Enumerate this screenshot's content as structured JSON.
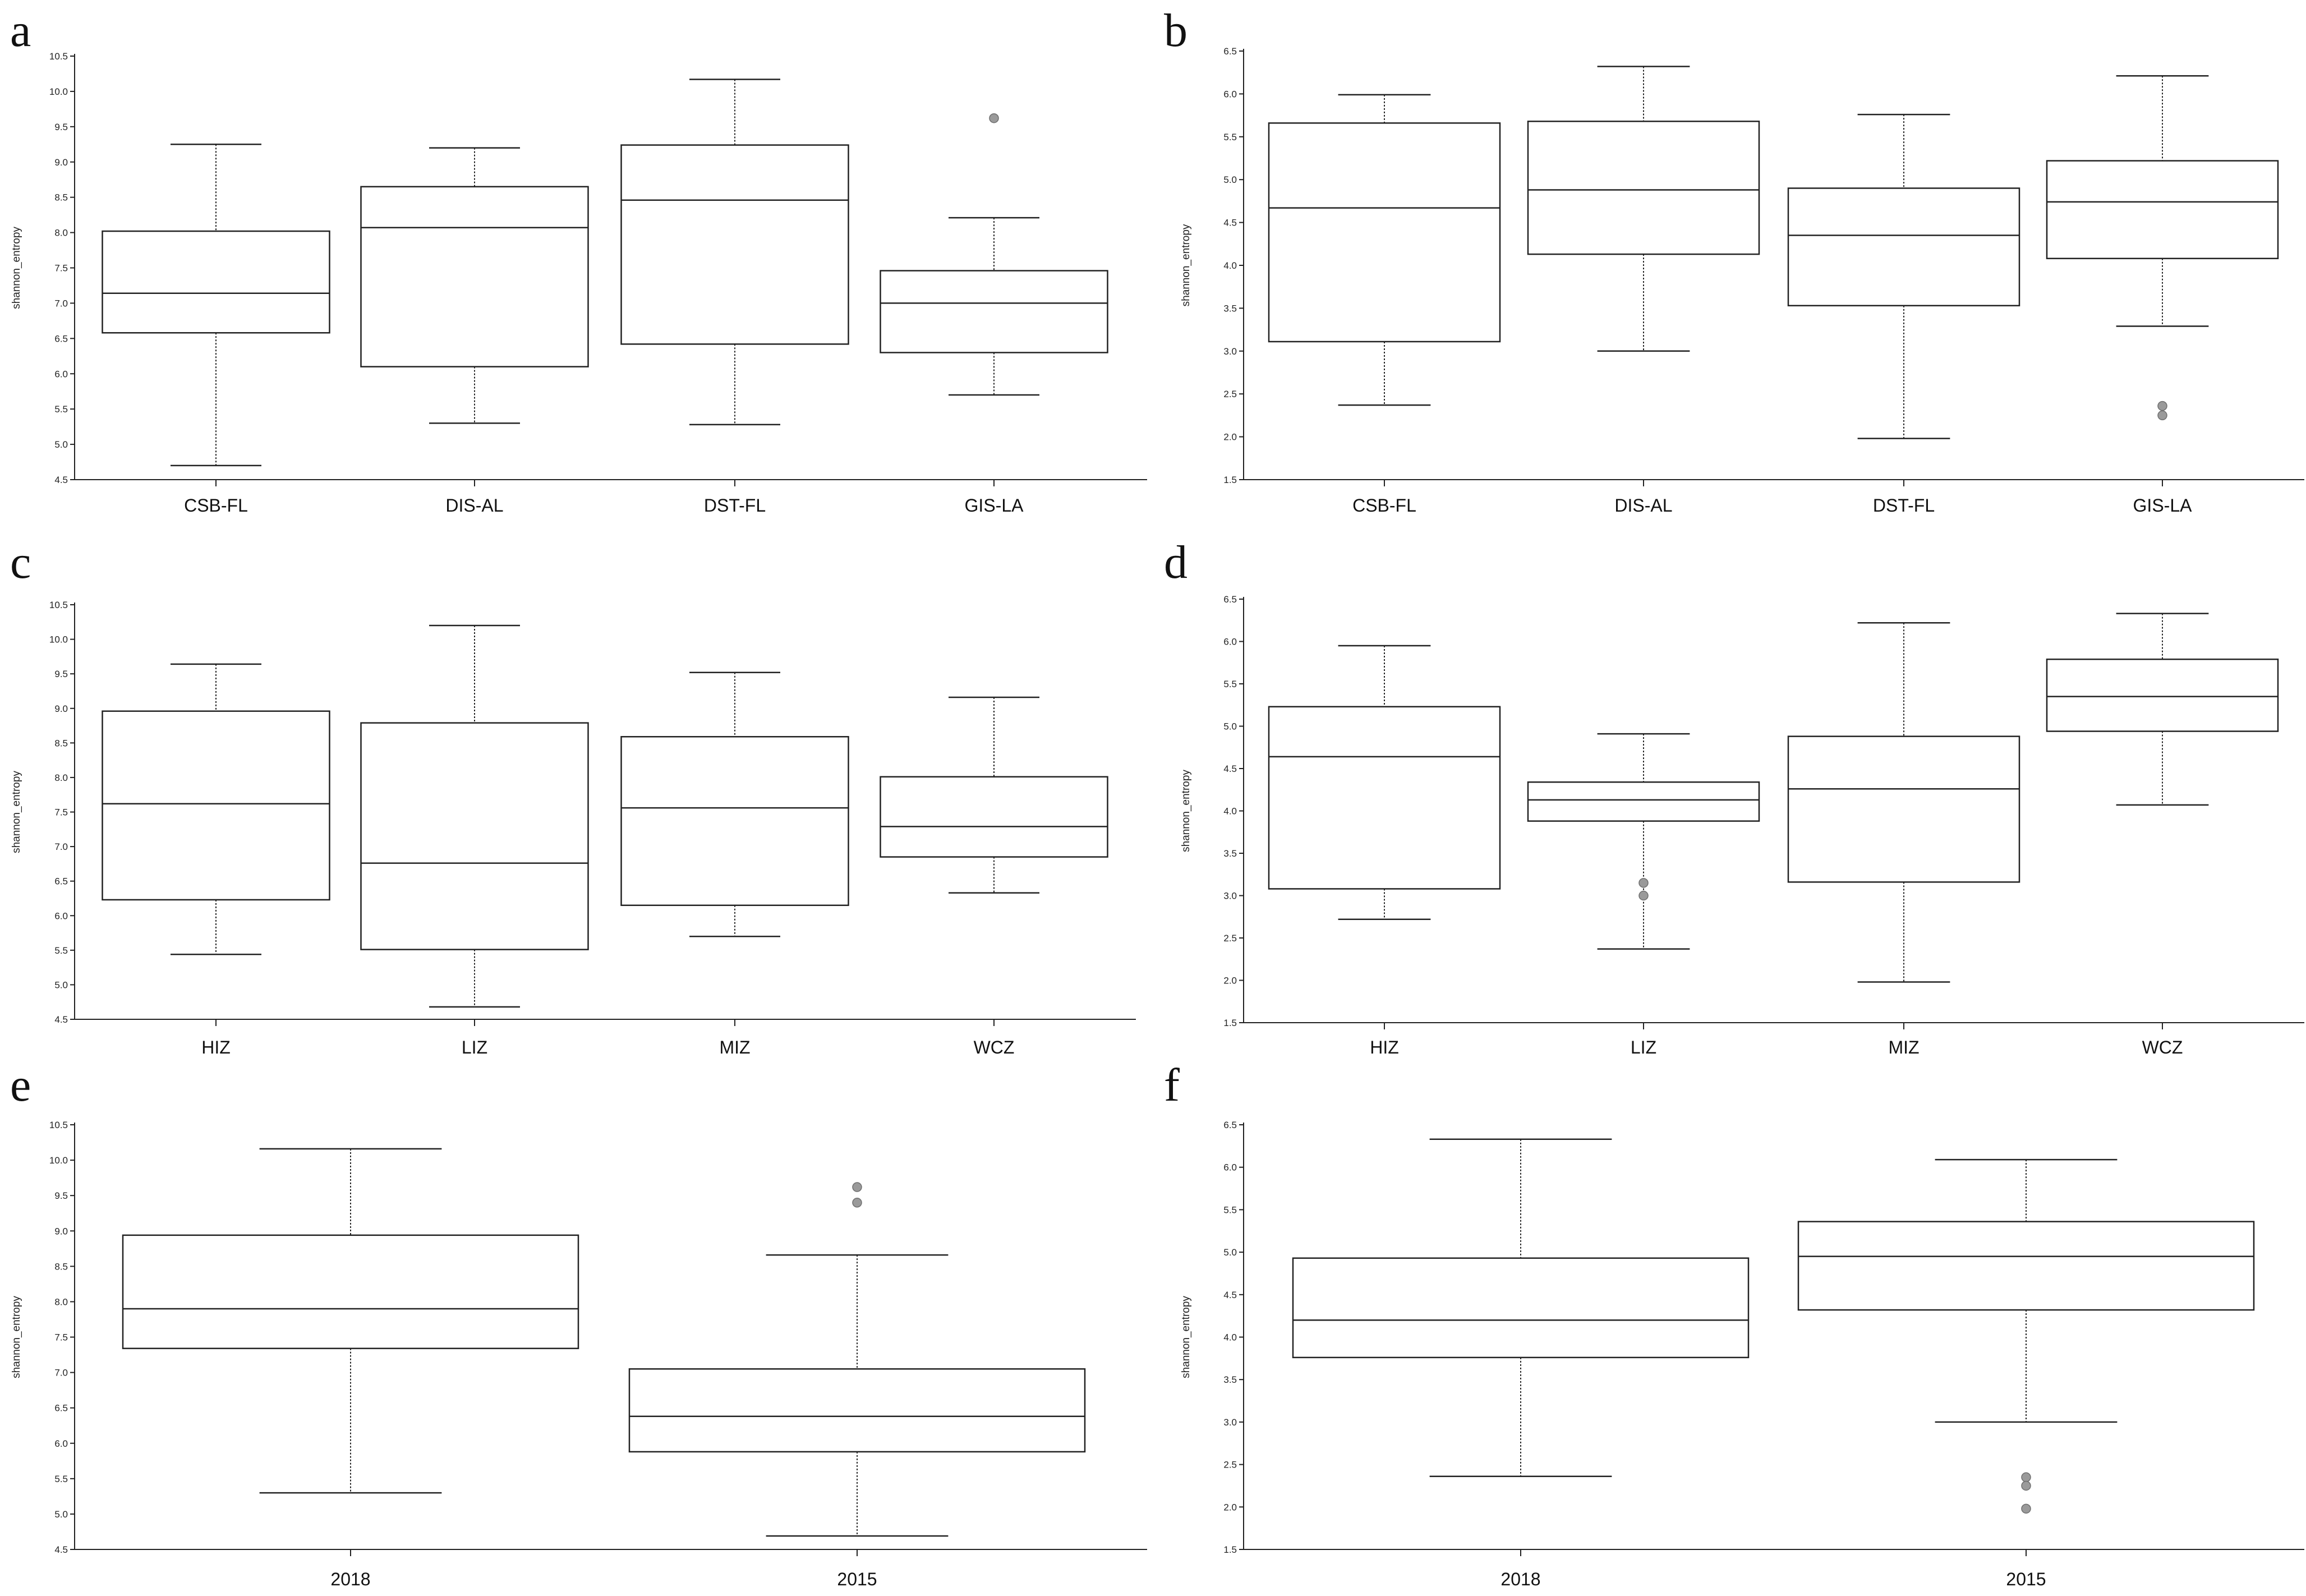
{
  "chart_data": [
    {
      "panel": "a",
      "type": "box",
      "ylabel": "shannon_entropy",
      "ylim": [
        4.5,
        10.5
      ],
      "yticks": [
        "4.5",
        "5.0",
        "5.5",
        "6.0",
        "6.5",
        "7.0",
        "7.5",
        "8.0",
        "8.5",
        "9.0",
        "9.5",
        "10.0",
        "10.5"
      ],
      "categories": [
        "CSB-FL",
        "DIS-AL",
        "DST-FL",
        "GIS-LA"
      ],
      "boxes": [
        {
          "min": 4.7,
          "q1": 6.58,
          "median": 7.14,
          "q3": 8.02,
          "max": 9.25,
          "outliers": []
        },
        {
          "min": 5.3,
          "q1": 6.1,
          "median": 8.07,
          "q3": 8.65,
          "max": 9.2,
          "outliers": []
        },
        {
          "min": 5.28,
          "q1": 6.42,
          "median": 8.46,
          "q3": 9.24,
          "max": 10.17,
          "outliers": []
        },
        {
          "min": 5.7,
          "q1": 6.3,
          "median": 7.0,
          "q3": 7.46,
          "max": 8.21,
          "outliers": [
            9.62
          ]
        }
      ]
    },
    {
      "panel": "b",
      "type": "box",
      "ylabel": "shannon_entropy",
      "ylim": [
        1.5,
        6.5
      ],
      "yticks": [
        "1.5",
        "2.0",
        "2.5",
        "3.0",
        "3.5",
        "4.0",
        "4.5",
        "5.0",
        "5.5",
        "6.0",
        "6.5"
      ],
      "categories": [
        "CSB-FL",
        "DIS-AL",
        "DST-FL",
        "GIS-LA"
      ],
      "boxes": [
        {
          "min": 2.37,
          "q1": 3.11,
          "median": 4.67,
          "q3": 5.66,
          "max": 5.99,
          "outliers": []
        },
        {
          "min": 3.0,
          "q1": 4.13,
          "median": 4.88,
          "q3": 5.68,
          "max": 6.32,
          "outliers": []
        },
        {
          "min": 1.98,
          "q1": 3.53,
          "median": 4.35,
          "q3": 4.9,
          "max": 5.76,
          "outliers": []
        },
        {
          "min": 3.29,
          "q1": 4.08,
          "median": 4.74,
          "q3": 5.22,
          "max": 6.21,
          "outliers": [
            2.36,
            2.25
          ]
        }
      ]
    },
    {
      "panel": "c",
      "type": "box",
      "ylabel": "shannon_entropy",
      "ylim": [
        4.5,
        10.5
      ],
      "yticks": [
        "4.5",
        "5.0",
        "5.5",
        "6.0",
        "6.5",
        "7.0",
        "7.5",
        "8.0",
        "8.5",
        "9.0",
        "9.5",
        "10.0",
        "10.5"
      ],
      "categories": [
        "HIZ",
        "LIZ",
        "MIZ",
        "WCZ"
      ],
      "boxes": [
        {
          "min": 5.44,
          "q1": 6.23,
          "median": 7.62,
          "q3": 8.96,
          "max": 9.64,
          "outliers": []
        },
        {
          "min": 4.68,
          "q1": 5.51,
          "median": 6.76,
          "q3": 8.79,
          "max": 10.2,
          "outliers": []
        },
        {
          "min": 5.7,
          "q1": 6.15,
          "median": 7.56,
          "q3": 8.59,
          "max": 9.52,
          "outliers": []
        },
        {
          "min": 6.33,
          "q1": 6.85,
          "median": 7.29,
          "q3": 8.01,
          "max": 9.16,
          "outliers": []
        }
      ]
    },
    {
      "panel": "d",
      "type": "box",
      "ylabel": "shannon_entropy",
      "ylim": [
        1.5,
        6.5
      ],
      "yticks": [
        "1.5",
        "2.0",
        "2.5",
        "3.0",
        "3.5",
        "4.0",
        "4.5",
        "5.0",
        "5.5",
        "6.0",
        "6.5"
      ],
      "categories": [
        "HIZ",
        "LIZ",
        "MIZ",
        "WCZ"
      ],
      "boxes": [
        {
          "min": 2.72,
          "q1": 3.08,
          "median": 4.64,
          "q3": 5.23,
          "max": 5.95,
          "outliers": []
        },
        {
          "min": 2.37,
          "q1": 3.88,
          "median": 4.13,
          "q3": 4.34,
          "max": 4.91,
          "outliers": [
            3.15,
            3.0
          ]
        },
        {
          "min": 1.98,
          "q1": 3.16,
          "median": 4.26,
          "q3": 4.88,
          "max": 6.22,
          "outliers": []
        },
        {
          "min": 4.07,
          "q1": 4.94,
          "median": 5.35,
          "q3": 5.79,
          "max": 6.33,
          "outliers": []
        }
      ]
    },
    {
      "panel": "e",
      "type": "box",
      "ylabel": "shannon_entropy",
      "ylim": [
        4.5,
        10.5
      ],
      "yticks": [
        "4.5",
        "5.0",
        "5.5",
        "6.0",
        "6.5",
        "7.0",
        "7.5",
        "8.0",
        "8.5",
        "9.0",
        "9.5",
        "10.0",
        "10.5"
      ],
      "categories": [
        "2018",
        "2015"
      ],
      "boxes": [
        {
          "min": 5.3,
          "q1": 7.34,
          "median": 7.9,
          "q3": 8.94,
          "max": 10.16,
          "outliers": []
        },
        {
          "min": 4.69,
          "q1": 5.88,
          "median": 6.38,
          "q3": 7.05,
          "max": 8.66,
          "outliers": [
            9.62,
            9.4
          ]
        }
      ]
    },
    {
      "panel": "f",
      "type": "box",
      "ylabel": "shannon_entropy",
      "ylim": [
        1.5,
        6.5
      ],
      "yticks": [
        "1.5",
        "2.0",
        "2.5",
        "3.0",
        "3.5",
        "4.0",
        "4.5",
        "5.0",
        "5.5",
        "6.0",
        "6.5"
      ],
      "categories": [
        "2018",
        "2015"
      ],
      "boxes": [
        {
          "min": 2.36,
          "q1": 3.76,
          "median": 4.2,
          "q3": 4.93,
          "max": 6.33,
          "outliers": []
        },
        {
          "min": 3.0,
          "q1": 4.32,
          "median": 4.95,
          "q3": 5.36,
          "max": 6.09,
          "outliers": [
            2.35,
            2.25,
            1.98
          ]
        }
      ]
    }
  ]
}
